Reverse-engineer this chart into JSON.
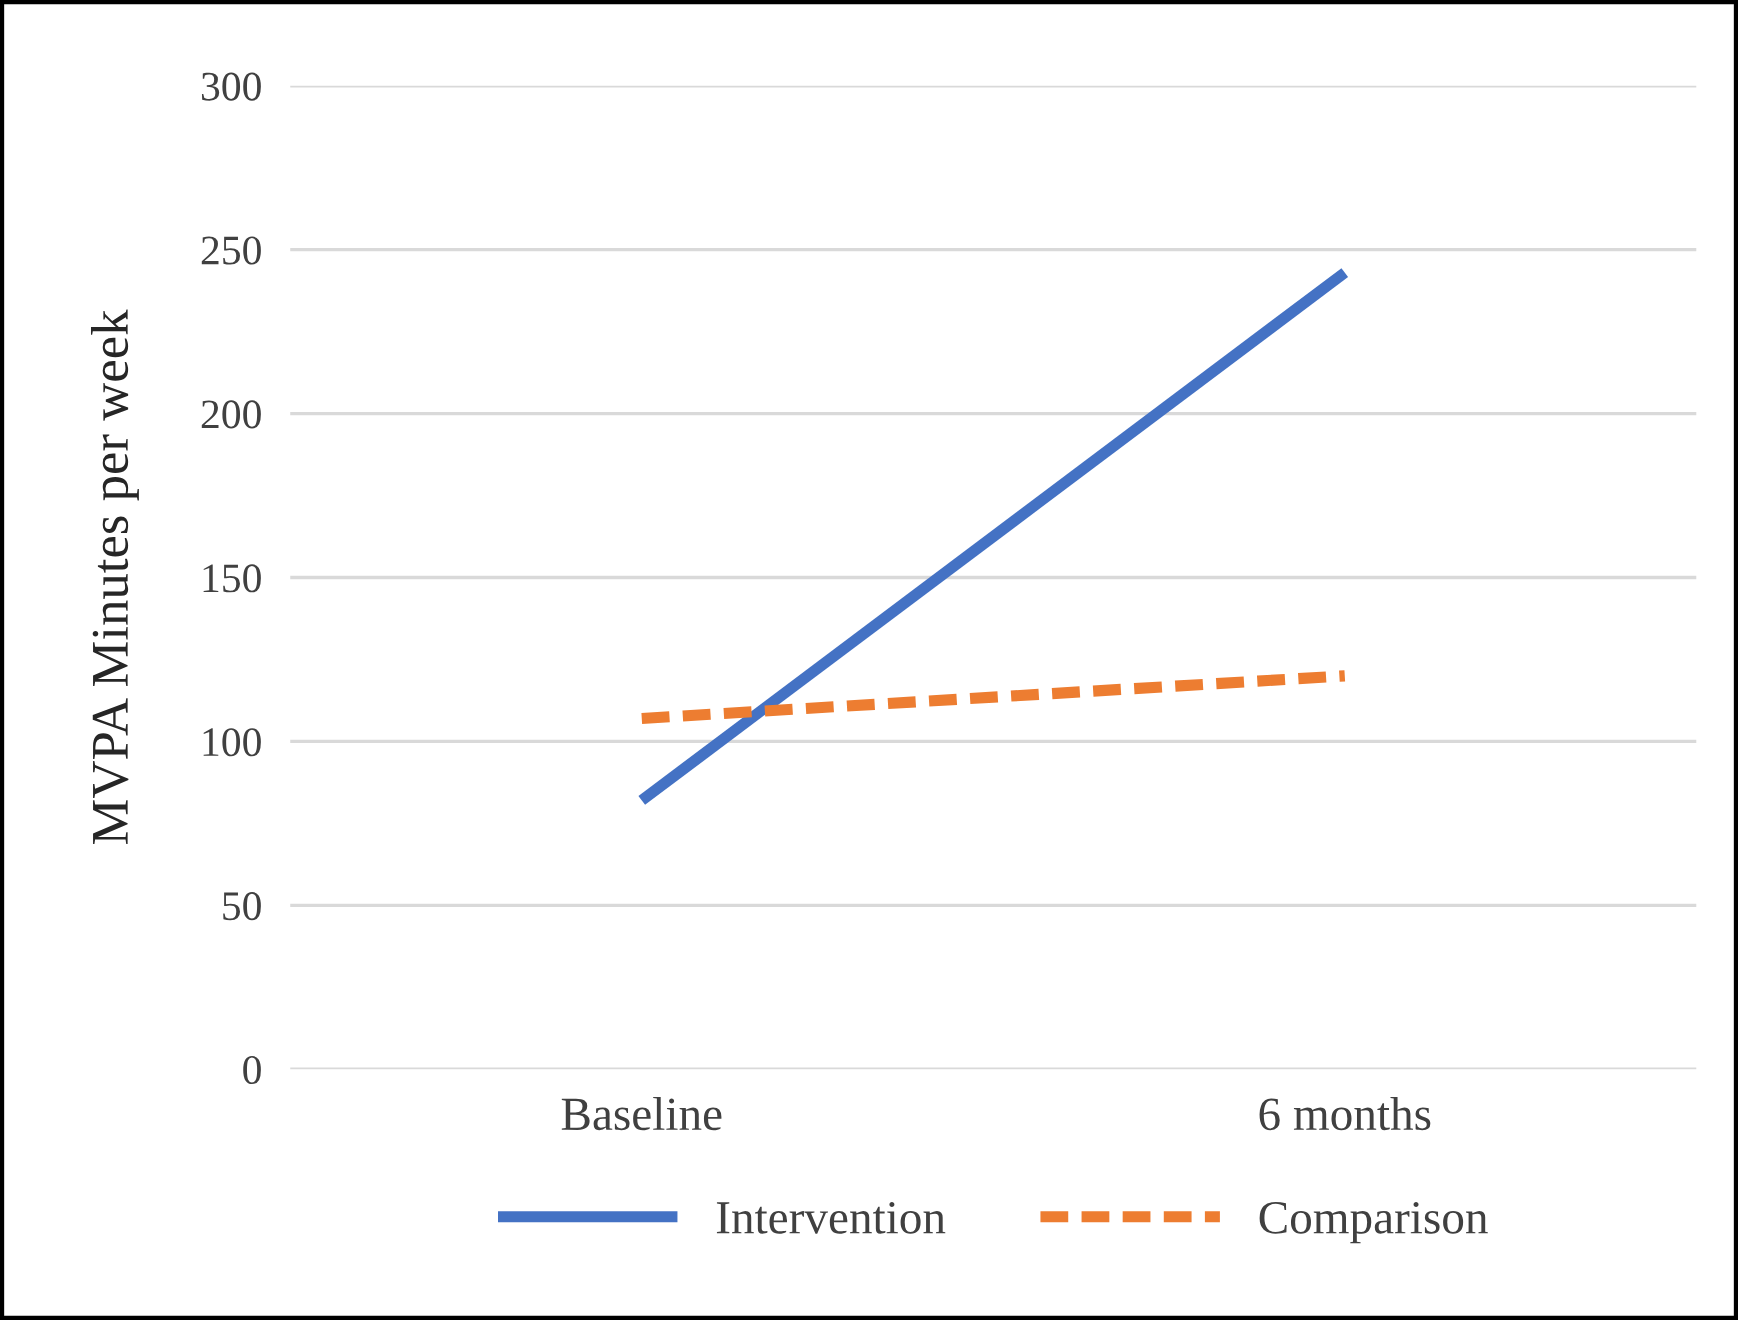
{
  "chart_data": {
    "type": "line",
    "ylabel": "MVPA Minutes per week",
    "categories": [
      "Baseline",
      "6 months"
    ],
    "series": [
      {
        "name": "Intervention",
        "color": "#4472c4",
        "values": [
          82,
          243
        ],
        "line_style": "solid"
      },
      {
        "name": "Comparison",
        "color": "#ed7d31",
        "values": [
          107,
          120
        ],
        "line_style": "dashed"
      }
    ],
    "ylim": [
      0,
      300
    ],
    "yticks": [
      0,
      50,
      100,
      150,
      200,
      250,
      300
    ],
    "grid": "y",
    "legend": "bottom",
    "marker": "none"
  }
}
